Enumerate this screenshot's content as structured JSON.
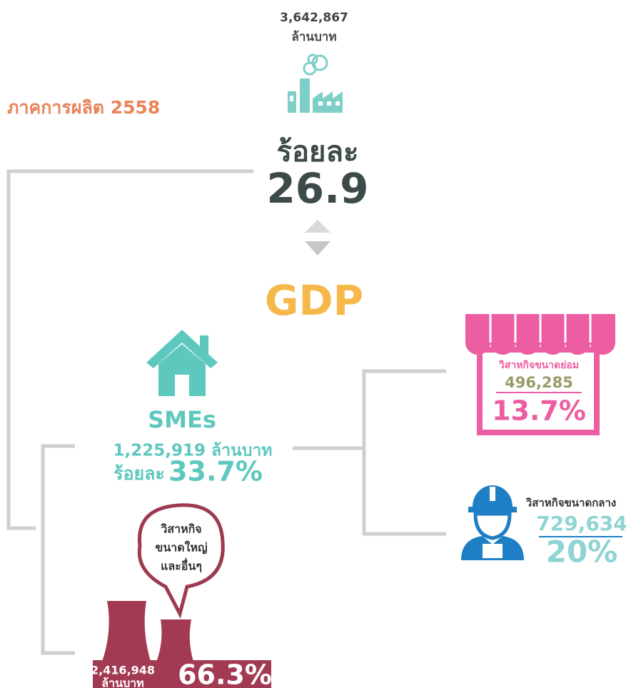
{
  "total": {
    "value": "3,642,867",
    "unit": "ล้านบาท"
  },
  "title": "ภาคการผลิต 2558",
  "share": {
    "label": "ร้อยละ",
    "value": "26.9"
  },
  "gdp": "GDP",
  "smes": {
    "name": "SMEs",
    "amount": "1,225,919 ล้านบาท",
    "label": "ร้อยละ",
    "percent": "33.7%"
  },
  "large": {
    "bubble": [
      "วิสาหกิจ",
      "ขนาดใหญ่",
      "และอื่นๆ"
    ],
    "amount": "2,416,948",
    "unit": "ล้านบาท",
    "percent": "66.3%"
  },
  "small": {
    "name": "วิสาหกิจขนาดย่อม",
    "amount": "496,285",
    "percent": "13.7%"
  },
  "medium": {
    "name": "วิสาหกิจขนาดกลาง",
    "amount": "729,634",
    "percent": "20%"
  }
}
